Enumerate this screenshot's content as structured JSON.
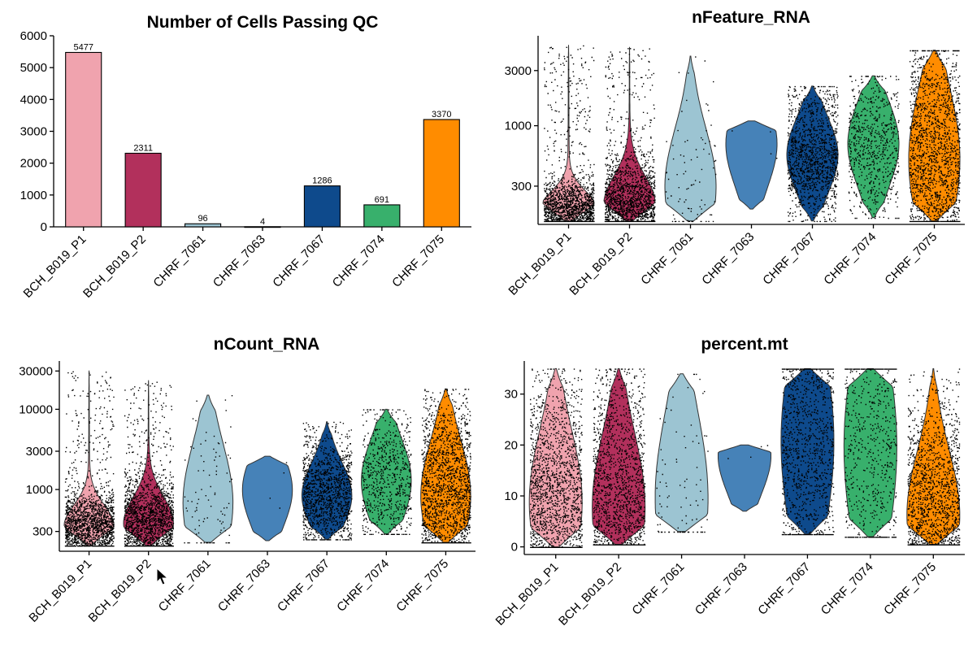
{
  "chart_data": [
    {
      "type": "bar",
      "title": "Number of Cells Passing QC",
      "categories": [
        "BCH_B019_P1",
        "BCH_B019_P2",
        "CHRF_7061",
        "CHRF_7063",
        "CHRF_7067",
        "CHRF_7074",
        "CHRF_7075"
      ],
      "values": [
        5477,
        2311,
        96,
        4,
        1286,
        691,
        3370
      ],
      "data_labels": [
        "5477",
        "2311",
        "96",
        "4",
        "1286",
        "691",
        "3370"
      ],
      "colors": [
        "#f0a3ae",
        "#b2305c",
        "#9cc4d2",
        "#4682b8",
        "#0e4a8c",
        "#38b06c",
        "#ff8c00"
      ],
      "ylim": [
        0,
        6000
      ],
      "yticks": [
        0,
        1000,
        2000,
        3000,
        4000,
        5000,
        6000
      ],
      "ytick_labels": [
        "0",
        "1000",
        "2000",
        "3000",
        "4000",
        "5000",
        "6000"
      ]
    },
    {
      "type": "violin",
      "title": "nFeature_RNA",
      "categories": [
        "BCH_B019_P1",
        "BCH_B019_P2",
        "CHRF_7061",
        "CHRF_7063",
        "CHRF_7067",
        "CHRF_7074",
        "CHRF_7075"
      ],
      "colors": [
        "#f0a3ae",
        "#b2305c",
        "#9cc4d2",
        "#4682b8",
        "#0e4a8c",
        "#38b06c",
        "#ff8c00"
      ],
      "scale": "log",
      "ylim": [
        140,
        6000
      ],
      "yticks": [
        300,
        1000,
        3000
      ],
      "ytick_labels": [
        "300",
        "1000",
        "3000"
      ],
      "distributions": [
        {
          "min": 150,
          "max": 5000,
          "mode": 190,
          "spread": 0.1
        },
        {
          "min": 150,
          "max": 4800,
          "mode": 210,
          "spread": 0.16
        },
        {
          "min": 150,
          "max": 4000,
          "mode": 300,
          "spread": 0.35
        },
        {
          "min": 190,
          "max": 1100,
          "mode": 700,
          "spread": 0.5
        },
        {
          "min": 150,
          "max": 2200,
          "mode": 560,
          "spread": 0.28
        },
        {
          "min": 160,
          "max": 2700,
          "mode": 700,
          "spread": 0.3
        },
        {
          "min": 150,
          "max": 4500,
          "mode": 520,
          "spread": 0.42
        }
      ],
      "n_points": [
        5477,
        2311,
        96,
        4,
        1286,
        691,
        3370
      ]
    },
    {
      "type": "violin",
      "title": "nCount_RNA",
      "categories": [
        "BCH_B019_P1",
        "BCH_B019_P2",
        "CHRF_7061",
        "CHRF_7063",
        "CHRF_7067",
        "CHRF_7074",
        "CHRF_7075"
      ],
      "colors": [
        "#f0a3ae",
        "#b2305c",
        "#9cc4d2",
        "#4682b8",
        "#0e4a8c",
        "#38b06c",
        "#ff8c00"
      ],
      "scale": "log",
      "ylim": [
        170,
        40000
      ],
      "yticks": [
        300,
        1000,
        3000,
        10000,
        30000
      ],
      "ytick_labels": [
        "300",
        "1000",
        "3000",
        "10000",
        "30000"
      ],
      "distributions": [
        {
          "min": 200,
          "max": 30000,
          "mode": 350,
          "spread": 0.12
        },
        {
          "min": 200,
          "max": 23000,
          "mode": 380,
          "spread": 0.16
        },
        {
          "min": 220,
          "max": 15000,
          "mode": 700,
          "spread": 0.4
        },
        {
          "min": 230,
          "max": 2600,
          "mode": 1000,
          "spread": 0.45
        },
        {
          "min": 240,
          "max": 7000,
          "mode": 850,
          "spread": 0.28
        },
        {
          "min": 280,
          "max": 10000,
          "mode": 1300,
          "spread": 0.34
        },
        {
          "min": 220,
          "max": 18000,
          "mode": 850,
          "spread": 0.36
        }
      ],
      "n_points": [
        5477,
        2311,
        96,
        4,
        1286,
        691,
        3370
      ]
    },
    {
      "type": "violin",
      "title": "percent.mt",
      "categories": [
        "BCH_B019_P1",
        "BCH_B019_P2",
        "CHRF_7061",
        "CHRF_7063",
        "CHRF_7067",
        "CHRF_7074",
        "CHRF_7075"
      ],
      "colors": [
        "#f0a3ae",
        "#b2305c",
        "#9cc4d2",
        "#4682b8",
        "#0e4a8c",
        "#38b06c",
        "#ff8c00"
      ],
      "scale": "linear",
      "ylim": [
        -1.5,
        36.5
      ],
      "yticks": [
        0,
        10,
        20,
        30
      ],
      "ytick_labels": [
        "0",
        "10",
        "20",
        "30"
      ],
      "distributions": [
        {
          "min": 0,
          "max": 35,
          "mode": 9,
          "spread": 0.4
        },
        {
          "min": 0.5,
          "max": 35,
          "mode": 8,
          "spread": 0.42
        },
        {
          "min": 3,
          "max": 34,
          "mode": 10,
          "spread": 0.55
        },
        {
          "min": 7,
          "max": 20,
          "mode": 18,
          "spread": 0.6
        },
        {
          "min": 2.5,
          "max": 35,
          "mode": 21,
          "spread": 0.6
        },
        {
          "min": 2,
          "max": 35,
          "mode": 20,
          "spread": 0.62
        },
        {
          "min": 0.5,
          "max": 35,
          "mode": 6.5,
          "spread": 0.36
        }
      ],
      "n_points": [
        5477,
        2311,
        96,
        4,
        1286,
        691,
        3370
      ]
    }
  ],
  "cursor_icon": "mouse-pointer-icon"
}
